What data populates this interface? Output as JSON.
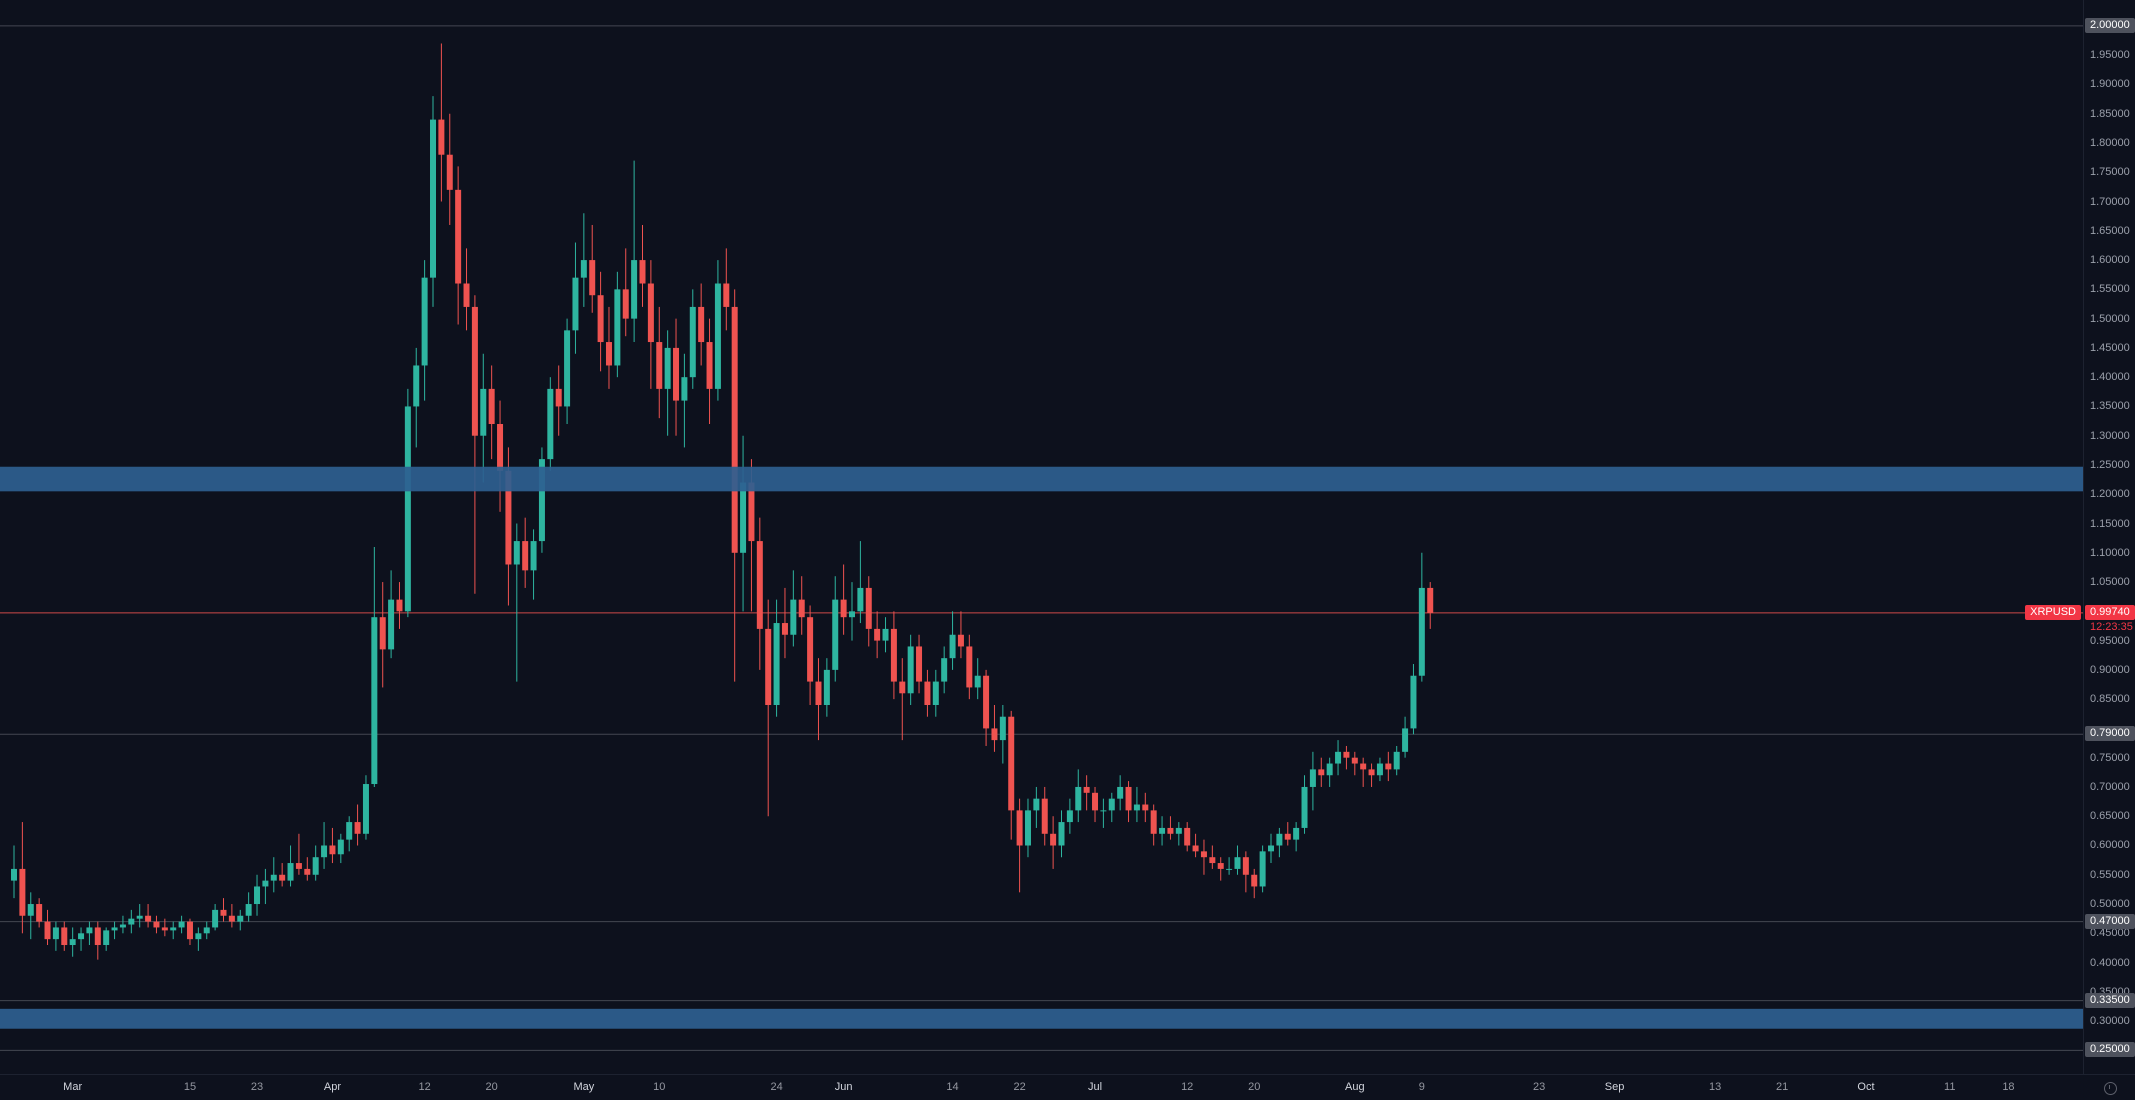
{
  "app": {
    "symbol": "XRPUSD"
  },
  "price_axis": {
    "ticks": [
      "1.95000",
      "1.90000",
      "1.85000",
      "1.80000",
      "1.75000",
      "1.70000",
      "1.65000",
      "1.60000",
      "1.55000",
      "1.50000",
      "1.45000",
      "1.40000",
      "1.35000",
      "1.30000",
      "1.25000",
      "1.20000",
      "1.15000",
      "1.10000",
      "1.05000",
      "0.95000",
      "0.90000",
      "0.85000",
      "0.75000",
      "0.70000",
      "0.65000",
      "0.60000",
      "0.55000",
      "0.50000",
      "0.45000",
      "0.40000",
      "0.35000",
      "0.30000"
    ],
    "badges": [
      {
        "price": 2.0,
        "label": "2.00000",
        "type": "level"
      },
      {
        "price": 0.9974,
        "label": "0.99740",
        "type": "last-price",
        "countdown": "12:23:35"
      },
      {
        "price": 0.79,
        "label": "0.79000",
        "type": "level"
      },
      {
        "price": 0.47,
        "label": "0.47000",
        "type": "level"
      },
      {
        "price": 0.335,
        "label": "0.33500",
        "type": "level"
      },
      {
        "price": 0.25,
        "label": "0.25000",
        "type": "level"
      }
    ]
  },
  "time_axis": {
    "ticks": [
      {
        "label": "Mar",
        "idx": 7,
        "major": true
      },
      {
        "label": "15",
        "idx": 21,
        "major": false
      },
      {
        "label": "23",
        "idx": 29,
        "major": false
      },
      {
        "label": "Apr",
        "idx": 38,
        "major": true
      },
      {
        "label": "12",
        "idx": 49,
        "major": false
      },
      {
        "label": "20",
        "idx": 57,
        "major": false
      },
      {
        "label": "May",
        "idx": 68,
        "major": true
      },
      {
        "label": "10",
        "idx": 77,
        "major": false
      },
      {
        "label": "24",
        "idx": 91,
        "major": false
      },
      {
        "label": "Jun",
        "idx": 99,
        "major": true
      },
      {
        "label": "14",
        "idx": 112,
        "major": false
      },
      {
        "label": "22",
        "idx": 120,
        "major": false
      },
      {
        "label": "Jul",
        "idx": 129,
        "major": true
      },
      {
        "label": "12",
        "idx": 140,
        "major": false
      },
      {
        "label": "20",
        "idx": 148,
        "major": false
      },
      {
        "label": "Aug",
        "idx": 160,
        "major": true
      },
      {
        "label": "9",
        "idx": 168,
        "major": false
      },
      {
        "label": "23",
        "idx": 182,
        "major": false
      },
      {
        "label": "Sep",
        "idx": 191,
        "major": true
      },
      {
        "label": "13",
        "idx": 203,
        "major": false
      },
      {
        "label": "21",
        "idx": 211,
        "major": false
      },
      {
        "label": "Oct",
        "idx": 221,
        "major": true
      },
      {
        "label": "11",
        "idx": 231,
        "major": false
      },
      {
        "label": "18",
        "idx": 238,
        "major": false
      }
    ]
  },
  "chart_data": {
    "type": "candlestick",
    "symbol": "XRPUSD",
    "price_line": {
      "value": 0.9974,
      "label": "0.99740",
      "countdown": "12:23:35",
      "symbol_label": "XRPUSD"
    },
    "levels": [
      2.0,
      0.79,
      0.47,
      0.335,
      0.25
    ],
    "zones": [
      {
        "from": 1.205,
        "to": 1.247
      },
      {
        "from": 0.287,
        "to": 0.321
      }
    ],
    "y_axis": {
      "visible_min": 0.21,
      "visible_max": 2.044,
      "tick_step": 0.05
    },
    "x_axis": {
      "months_visible": [
        "Mar",
        "Apr",
        "May",
        "Jun",
        "Jul",
        "Aug",
        "Sep",
        "Oct"
      ],
      "bars_plotted": 170,
      "future_space": true
    },
    "colors": {
      "up": "#2eb5a0",
      "down": "#ef5350",
      "zone": "#2e6090",
      "level_line": "#4a4d57",
      "price_line": "#ef5350",
      "background": "#0d111d",
      "axis_text": "#9ba0ab",
      "badge_gray": "#4e525d",
      "badge_red": "#f23645"
    },
    "candles": [
      [
        0.54,
        0.6,
        0.51,
        0.56
      ],
      [
        0.56,
        0.64,
        0.45,
        0.48
      ],
      [
        0.48,
        0.52,
        0.44,
        0.5
      ],
      [
        0.5,
        0.51,
        0.46,
        0.47
      ],
      [
        0.47,
        0.49,
        0.43,
        0.44
      ],
      [
        0.44,
        0.47,
        0.42,
        0.46
      ],
      [
        0.46,
        0.47,
        0.42,
        0.43
      ],
      [
        0.43,
        0.46,
        0.41,
        0.44
      ],
      [
        0.44,
        0.46,
        0.42,
        0.45
      ],
      [
        0.45,
        0.47,
        0.43,
        0.46
      ],
      [
        0.46,
        0.47,
        0.405,
        0.43
      ],
      [
        0.43,
        0.46,
        0.42,
        0.455
      ],
      [
        0.455,
        0.47,
        0.44,
        0.46
      ],
      [
        0.46,
        0.48,
        0.45,
        0.465
      ],
      [
        0.465,
        0.49,
        0.45,
        0.475
      ],
      [
        0.475,
        0.5,
        0.46,
        0.48
      ],
      [
        0.48,
        0.5,
        0.46,
        0.47
      ],
      [
        0.47,
        0.48,
        0.45,
        0.46
      ],
      [
        0.46,
        0.475,
        0.445,
        0.455
      ],
      [
        0.455,
        0.47,
        0.44,
        0.46
      ],
      [
        0.46,
        0.48,
        0.45,
        0.47
      ],
      [
        0.47,
        0.475,
        0.43,
        0.44
      ],
      [
        0.44,
        0.46,
        0.42,
        0.45
      ],
      [
        0.45,
        0.47,
        0.44,
        0.46
      ],
      [
        0.46,
        0.5,
        0.455,
        0.49
      ],
      [
        0.49,
        0.51,
        0.47,
        0.48
      ],
      [
        0.48,
        0.5,
        0.46,
        0.47
      ],
      [
        0.47,
        0.49,
        0.455,
        0.48
      ],
      [
        0.48,
        0.52,
        0.47,
        0.5
      ],
      [
        0.5,
        0.55,
        0.48,
        0.53
      ],
      [
        0.53,
        0.56,
        0.5,
        0.54
      ],
      [
        0.54,
        0.58,
        0.52,
        0.55
      ],
      [
        0.55,
        0.57,
        0.53,
        0.54
      ],
      [
        0.54,
        0.6,
        0.53,
        0.57
      ],
      [
        0.57,
        0.62,
        0.55,
        0.56
      ],
      [
        0.56,
        0.58,
        0.54,
        0.55
      ],
      [
        0.55,
        0.6,
        0.54,
        0.58
      ],
      [
        0.58,
        0.64,
        0.56,
        0.6
      ],
      [
        0.6,
        0.63,
        0.57,
        0.585
      ],
      [
        0.585,
        0.62,
        0.57,
        0.61
      ],
      [
        0.61,
        0.65,
        0.59,
        0.64
      ],
      [
        0.64,
        0.67,
        0.6,
        0.62
      ],
      [
        0.62,
        0.72,
        0.61,
        0.705
      ],
      [
        0.705,
        1.11,
        0.7,
        0.99
      ],
      [
        0.99,
        1.05,
        0.87,
        0.935
      ],
      [
        0.935,
        1.07,
        0.92,
        1.02
      ],
      [
        1.02,
        1.05,
        0.97,
        1.0
      ],
      [
        1.0,
        1.38,
        0.99,
        1.35
      ],
      [
        1.35,
        1.45,
        1.28,
        1.42
      ],
      [
        1.42,
        1.6,
        1.36,
        1.57
      ],
      [
        1.57,
        1.88,
        1.52,
        1.84
      ],
      [
        1.84,
        1.97,
        1.7,
        1.78
      ],
      [
        1.78,
        1.85,
        1.66,
        1.72
      ],
      [
        1.72,
        1.76,
        1.49,
        1.56
      ],
      [
        1.56,
        1.62,
        1.48,
        1.52
      ],
      [
        1.52,
        1.54,
        1.03,
        1.3
      ],
      [
        1.3,
        1.44,
        1.22,
        1.38
      ],
      [
        1.38,
        1.42,
        1.26,
        1.32
      ],
      [
        1.32,
        1.36,
        1.17,
        1.24
      ],
      [
        1.24,
        1.28,
        1.01,
        1.08
      ],
      [
        1.08,
        1.15,
        0.88,
        1.12
      ],
      [
        1.12,
        1.16,
        1.04,
        1.07
      ],
      [
        1.07,
        1.14,
        1.02,
        1.12
      ],
      [
        1.12,
        1.28,
        1.1,
        1.26
      ],
      [
        1.26,
        1.4,
        1.24,
        1.38
      ],
      [
        1.38,
        1.42,
        1.3,
        1.35
      ],
      [
        1.35,
        1.5,
        1.32,
        1.48
      ],
      [
        1.48,
        1.63,
        1.44,
        1.57
      ],
      [
        1.57,
        1.68,
        1.52,
        1.6
      ],
      [
        1.6,
        1.66,
        1.51,
        1.54
      ],
      [
        1.54,
        1.58,
        1.41,
        1.46
      ],
      [
        1.46,
        1.52,
        1.38,
        1.42
      ],
      [
        1.42,
        1.58,
        1.4,
        1.55
      ],
      [
        1.55,
        1.62,
        1.47,
        1.5
      ],
      [
        1.5,
        1.77,
        1.46,
        1.6
      ],
      [
        1.6,
        1.66,
        1.52,
        1.56
      ],
      [
        1.56,
        1.6,
        1.38,
        1.46
      ],
      [
        1.46,
        1.52,
        1.33,
        1.38
      ],
      [
        1.38,
        1.48,
        1.3,
        1.45
      ],
      [
        1.45,
        1.5,
        1.3,
        1.36
      ],
      [
        1.36,
        1.44,
        1.28,
        1.4
      ],
      [
        1.4,
        1.55,
        1.38,
        1.52
      ],
      [
        1.52,
        1.56,
        1.42,
        1.46
      ],
      [
        1.46,
        1.5,
        1.32,
        1.38
      ],
      [
        1.38,
        1.6,
        1.36,
        1.56
      ],
      [
        1.56,
        1.62,
        1.48,
        1.52
      ],
      [
        1.52,
        1.55,
        0.88,
        1.1
      ],
      [
        1.1,
        1.3,
        1.0,
        1.22
      ],
      [
        1.22,
        1.26,
        1.0,
        1.12
      ],
      [
        1.12,
        1.16,
        0.9,
        0.97
      ],
      [
        0.97,
        1.02,
        0.65,
        0.84
      ],
      [
        0.84,
        1.02,
        0.82,
        0.98
      ],
      [
        0.98,
        1.04,
        0.92,
        0.96
      ],
      [
        0.96,
        1.07,
        0.94,
        1.02
      ],
      [
        1.02,
        1.06,
        0.96,
        0.99
      ],
      [
        0.99,
        1.01,
        0.84,
        0.88
      ],
      [
        0.88,
        0.92,
        0.78,
        0.84
      ],
      [
        0.84,
        0.92,
        0.82,
        0.9
      ],
      [
        0.9,
        1.06,
        0.88,
        1.02
      ],
      [
        1.02,
        1.08,
        0.96,
        0.99
      ],
      [
        0.99,
        1.05,
        0.95,
        1.0
      ],
      [
        1.0,
        1.12,
        0.98,
        1.04
      ],
      [
        1.04,
        1.06,
        0.94,
        0.97
      ],
      [
        0.97,
        1.0,
        0.92,
        0.95
      ],
      [
        0.95,
        0.99,
        0.93,
        0.97
      ],
      [
        0.97,
        1.0,
        0.85,
        0.88
      ],
      [
        0.88,
        0.92,
        0.78,
        0.86
      ],
      [
        0.86,
        0.96,
        0.84,
        0.94
      ],
      [
        0.94,
        0.96,
        0.86,
        0.88
      ],
      [
        0.88,
        0.9,
        0.82,
        0.84
      ],
      [
        0.84,
        0.9,
        0.82,
        0.88
      ],
      [
        0.88,
        0.94,
        0.86,
        0.92
      ],
      [
        0.92,
        1.0,
        0.9,
        0.96
      ],
      [
        0.96,
        1.0,
        0.92,
        0.94
      ],
      [
        0.94,
        0.96,
        0.85,
        0.87
      ],
      [
        0.87,
        0.92,
        0.85,
        0.89
      ],
      [
        0.89,
        0.9,
        0.77,
        0.8
      ],
      [
        0.8,
        0.84,
        0.76,
        0.78
      ],
      [
        0.78,
        0.84,
        0.74,
        0.82
      ],
      [
        0.82,
        0.83,
        0.61,
        0.66
      ],
      [
        0.66,
        0.68,
        0.52,
        0.6
      ],
      [
        0.6,
        0.68,
        0.58,
        0.66
      ],
      [
        0.66,
        0.7,
        0.63,
        0.68
      ],
      [
        0.68,
        0.7,
        0.6,
        0.62
      ],
      [
        0.62,
        0.65,
        0.56,
        0.6
      ],
      [
        0.6,
        0.66,
        0.58,
        0.64
      ],
      [
        0.64,
        0.68,
        0.62,
        0.66
      ],
      [
        0.66,
        0.73,
        0.64,
        0.7
      ],
      [
        0.7,
        0.72,
        0.66,
        0.69
      ],
      [
        0.69,
        0.7,
        0.64,
        0.66
      ],
      [
        0.66,
        0.68,
        0.63,
        0.66
      ],
      [
        0.66,
        0.69,
        0.64,
        0.68
      ],
      [
        0.68,
        0.72,
        0.66,
        0.7
      ],
      [
        0.7,
        0.71,
        0.64,
        0.66
      ],
      [
        0.66,
        0.7,
        0.64,
        0.67
      ],
      [
        0.67,
        0.69,
        0.64,
        0.66
      ],
      [
        0.66,
        0.67,
        0.6,
        0.62
      ],
      [
        0.62,
        0.65,
        0.6,
        0.63
      ],
      [
        0.63,
        0.65,
        0.61,
        0.62
      ],
      [
        0.62,
        0.64,
        0.6,
        0.63
      ],
      [
        0.63,
        0.64,
        0.59,
        0.6
      ],
      [
        0.6,
        0.62,
        0.58,
        0.59
      ],
      [
        0.59,
        0.61,
        0.55,
        0.58
      ],
      [
        0.58,
        0.6,
        0.56,
        0.57
      ],
      [
        0.57,
        0.58,
        0.54,
        0.56
      ],
      [
        0.56,
        0.58,
        0.55,
        0.56
      ],
      [
        0.56,
        0.6,
        0.55,
        0.58
      ],
      [
        0.58,
        0.59,
        0.52,
        0.55
      ],
      [
        0.55,
        0.56,
        0.51,
        0.53
      ],
      [
        0.53,
        0.6,
        0.52,
        0.59
      ],
      [
        0.59,
        0.62,
        0.57,
        0.6
      ],
      [
        0.6,
        0.63,
        0.58,
        0.62
      ],
      [
        0.62,
        0.64,
        0.6,
        0.61
      ],
      [
        0.61,
        0.64,
        0.59,
        0.63
      ],
      [
        0.63,
        0.72,
        0.62,
        0.7
      ],
      [
        0.7,
        0.76,
        0.66,
        0.73
      ],
      [
        0.73,
        0.75,
        0.7,
        0.72
      ],
      [
        0.72,
        0.75,
        0.7,
        0.74
      ],
      [
        0.74,
        0.78,
        0.72,
        0.76
      ],
      [
        0.76,
        0.77,
        0.73,
        0.75
      ],
      [
        0.75,
        0.76,
        0.72,
        0.74
      ],
      [
        0.74,
        0.75,
        0.7,
        0.73
      ],
      [
        0.73,
        0.74,
        0.7,
        0.72
      ],
      [
        0.72,
        0.75,
        0.71,
        0.74
      ],
      [
        0.74,
        0.76,
        0.71,
        0.73
      ],
      [
        0.73,
        0.77,
        0.72,
        0.76
      ],
      [
        0.76,
        0.82,
        0.75,
        0.8
      ],
      [
        0.8,
        0.91,
        0.79,
        0.89
      ],
      [
        0.89,
        1.1,
        0.88,
        1.04
      ],
      [
        1.04,
        1.05,
        0.97,
        0.9974
      ]
    ]
  }
}
